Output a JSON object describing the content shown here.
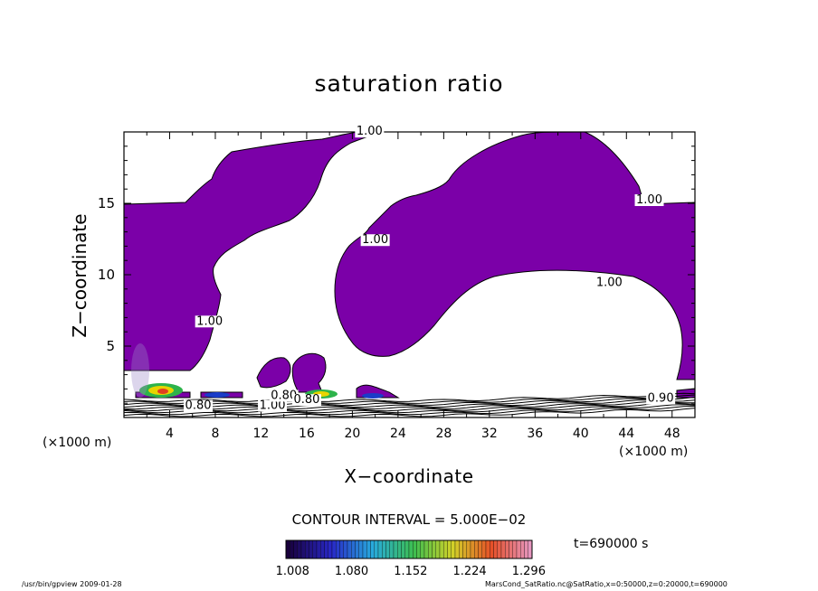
{
  "chart_data": {
    "type": "contour",
    "title": "saturation ratio",
    "xlabel": "X−coordinate",
    "ylabel": "Z−coordinate",
    "x_unit_label": "(×1000 m)",
    "x_ticks": [
      "4",
      "8",
      "12",
      "16",
      "20",
      "24",
      "28",
      "32",
      "36",
      "40",
      "44",
      "48"
    ],
    "y_ticks": [
      "5",
      "10",
      "15"
    ],
    "xlim": [
      0,
      50
    ],
    "ylim": [
      0,
      20
    ],
    "fill_color": "#7b00a8",
    "contour_labels": [
      {
        "text": "1.00",
        "x": 21.5,
        "z": 19.8
      },
      {
        "text": "1.00",
        "x": 22.0,
        "z": 12.2
      },
      {
        "text": "1.00",
        "x": 46.0,
        "z": 15.0
      },
      {
        "text": "1.00",
        "x": 42.5,
        "z": 9.2
      },
      {
        "text": "1.00",
        "x": 7.5,
        "z": 6.5
      },
      {
        "text": "0.80",
        "x": 6.5,
        "z": 0.6
      },
      {
        "text": "1.00",
        "x": 13.0,
        "z": 0.6
      },
      {
        "text": "0.80",
        "x": 14.0,
        "z": 1.3
      },
      {
        "text": "0.80",
        "x": 16.0,
        "z": 1.0
      },
      {
        "text": "0.90",
        "x": 47.0,
        "z": 1.1
      }
    ],
    "contour_interval": "CONTOUR INTERVAL = 5.000E−02",
    "colorbar": {
      "tick_labels": [
        "1.008",
        "1.080",
        "1.152",
        "1.224",
        "1.296"
      ],
      "min": 1.0,
      "max": 1.3
    }
  },
  "time_label": "t=690000 s",
  "footer": {
    "left": "/usr/bin/gpview   2009-01-28",
    "right": "MarsCond_SatRatio.nc@SatRatio,x=0:50000,z=0:20000,t=690000"
  }
}
